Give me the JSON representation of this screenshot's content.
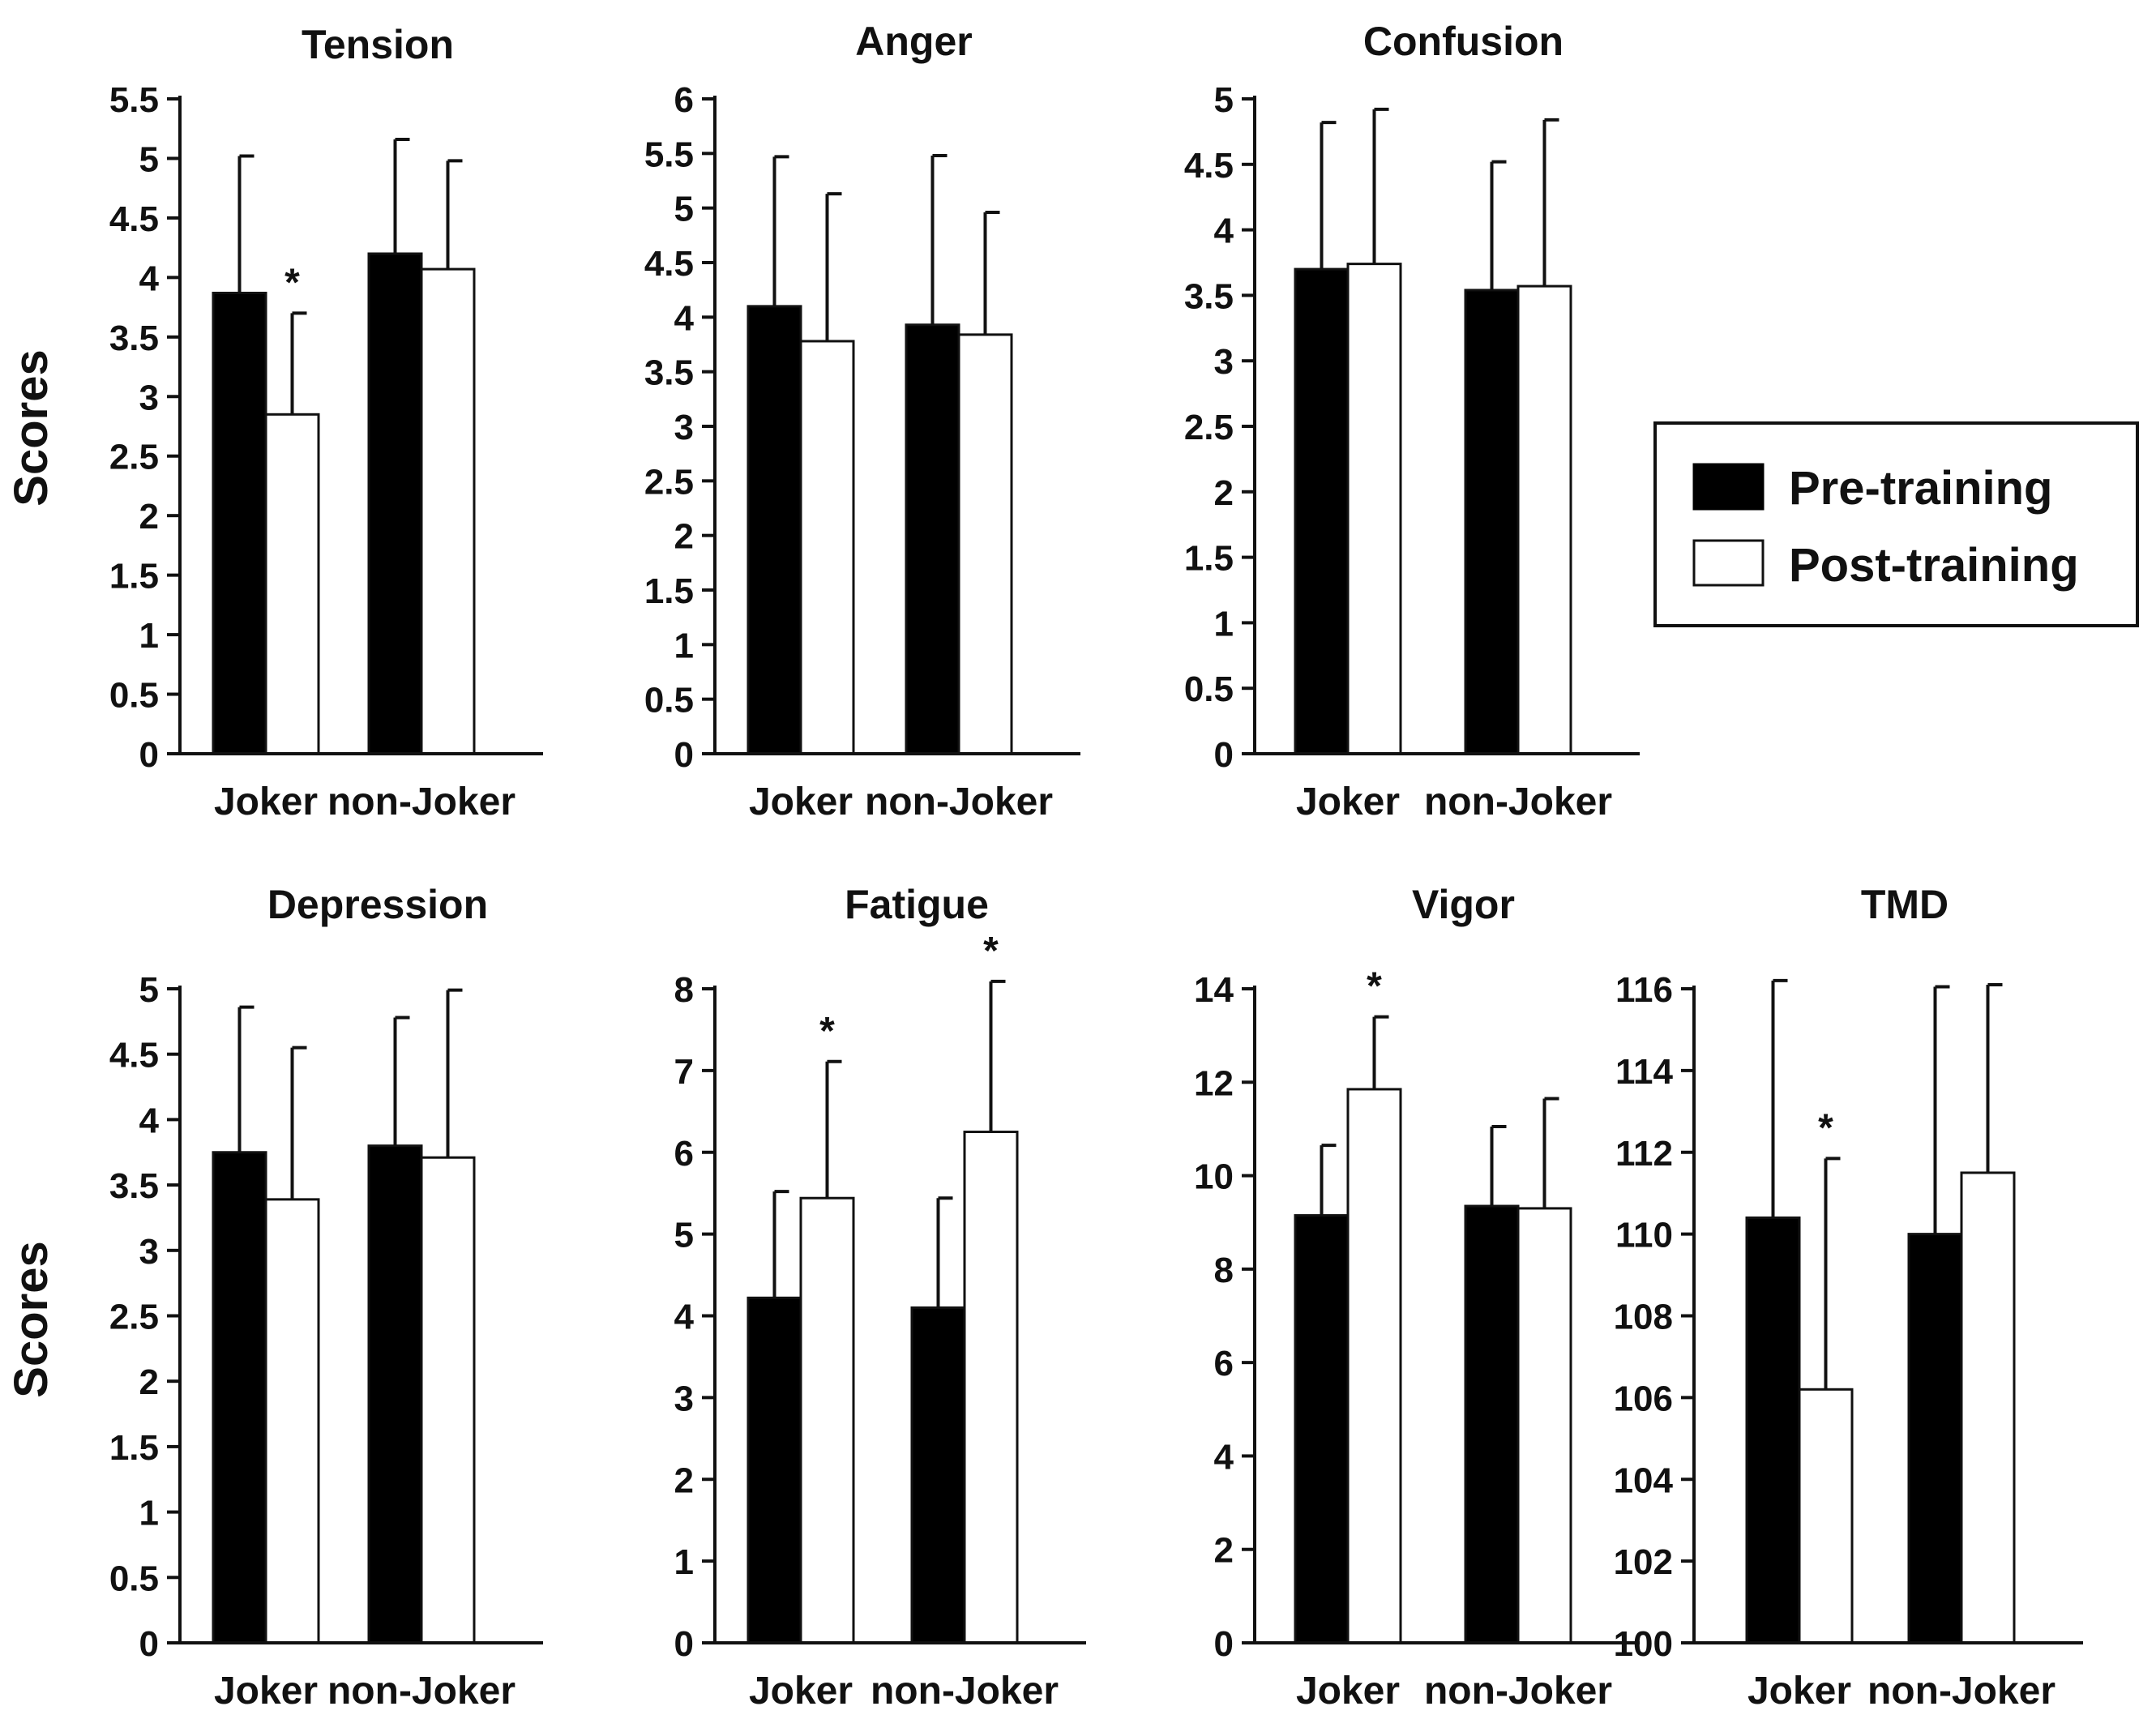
{
  "y_axis_label": "Scores",
  "legend": {
    "pre_label": "Pre-training",
    "post_label": "Post-training",
    "pre_color": "#000000",
    "post_color": "#ffffff"
  },
  "significance_marker": "*",
  "chart_data": [
    {
      "type": "bar",
      "title": "Tension",
      "categories": [
        "Joker",
        "non-Joker"
      ],
      "ylim": [
        0,
        5.5
      ],
      "yticks": [
        "0",
        "0.5",
        "1",
        "1.5",
        "2",
        "2.5",
        "3",
        "3.5",
        "4",
        "4.5",
        "5",
        "5.5"
      ],
      "ylabel": "Scores",
      "series": [
        {
          "name": "Pre-training",
          "values": [
            3.87,
            4.2
          ],
          "errors": [
            1.15,
            0.96
          ]
        },
        {
          "name": "Post-training",
          "values": [
            2.85,
            4.07
          ],
          "errors": [
            0.85,
            0.91
          ]
        }
      ],
      "significant": [
        {
          "category": "Joker",
          "series": "Post-training"
        }
      ]
    },
    {
      "type": "bar",
      "title": "Anger",
      "categories": [
        "Joker",
        "non-Joker"
      ],
      "ylim": [
        0,
        6
      ],
      "yticks": [
        "0",
        "0.5",
        "1",
        "1.5",
        "2",
        "2.5",
        "3",
        "3.5",
        "4",
        "4.5",
        "5",
        "5.5",
        "6"
      ],
      "ylabel": "",
      "series": [
        {
          "name": "Pre-training",
          "values": [
            4.1,
            3.93
          ],
          "errors": [
            1.37,
            1.55
          ]
        },
        {
          "name": "Post-training",
          "values": [
            3.78,
            3.84
          ],
          "errors": [
            1.35,
            1.12
          ]
        }
      ],
      "significant": []
    },
    {
      "type": "bar",
      "title": "Confusion",
      "categories": [
        "Joker",
        "non-Joker"
      ],
      "ylim": [
        0,
        5
      ],
      "yticks": [
        "0",
        "0.5",
        "1",
        "1.5",
        "2",
        "2.5",
        "3",
        "3.5",
        "4",
        "4.5",
        "5"
      ],
      "ylabel": "",
      "series": [
        {
          "name": "Pre-training",
          "values": [
            3.7,
            3.54
          ],
          "errors": [
            1.12,
            0.98
          ]
        },
        {
          "name": "Post-training",
          "values": [
            3.74,
            3.57
          ],
          "errors": [
            1.18,
            1.27
          ]
        }
      ],
      "significant": []
    },
    {
      "type": "bar",
      "title": "Depression",
      "categories": [
        "Joker",
        "non-Joker"
      ],
      "ylim": [
        0,
        5
      ],
      "yticks": [
        "0",
        "0.5",
        "1",
        "1.5",
        "2",
        "2.5",
        "3",
        "3.5",
        "4",
        "4.5",
        "5"
      ],
      "ylabel": "Scores",
      "series": [
        {
          "name": "Pre-training",
          "values": [
            3.75,
            3.8
          ],
          "errors": [
            1.11,
            0.98
          ]
        },
        {
          "name": "Post-training",
          "values": [
            3.39,
            3.71
          ],
          "errors": [
            1.16,
            1.28
          ]
        }
      ],
      "significant": []
    },
    {
      "type": "bar",
      "title": "Fatigue",
      "categories": [
        "Joker",
        "non-Joker"
      ],
      "ylim": [
        0,
        8
      ],
      "yticks": [
        "0",
        "1",
        "2",
        "3",
        "4",
        "5",
        "6",
        "7",
        "8"
      ],
      "ylabel": "",
      "series": [
        {
          "name": "Pre-training",
          "values": [
            4.22,
            4.1
          ],
          "errors": [
            1.3,
            1.34
          ]
        },
        {
          "name": "Post-training",
          "values": [
            5.44,
            6.25
          ],
          "errors": [
            1.67,
            1.84
          ]
        }
      ],
      "significant": [
        {
          "category": "Joker",
          "series": "Post-training"
        },
        {
          "category": "non-Joker",
          "series": "Post-training"
        }
      ]
    },
    {
      "type": "bar",
      "title": "Vigor",
      "categories": [
        "Joker",
        "non-Joker"
      ],
      "ylim": [
        0,
        14
      ],
      "yticks": [
        "0",
        "2",
        "4",
        "6",
        "8",
        "10",
        "12",
        "14"
      ],
      "ylabel": "",
      "series": [
        {
          "name": "Pre-training",
          "values": [
            9.15,
            9.35
          ],
          "errors": [
            1.5,
            1.7
          ]
        },
        {
          "name": "Post-training",
          "values": [
            11.85,
            9.3
          ],
          "errors": [
            1.55,
            2.35
          ]
        }
      ],
      "significant": [
        {
          "category": "Joker",
          "series": "Post-training"
        }
      ]
    },
    {
      "type": "bar",
      "title": "TMD",
      "categories": [
        "Joker",
        "non-Joker"
      ],
      "ylim": [
        100,
        116
      ],
      "yticks": [
        "100",
        "102",
        "104",
        "106",
        "108",
        "110",
        "112",
        "114",
        "116"
      ],
      "ylabel": "",
      "series": [
        {
          "name": "Pre-training",
          "values": [
            110.4,
            110.0
          ],
          "errors": [
            5.8,
            6.05
          ]
        },
        {
          "name": "Post-training",
          "values": [
            106.2,
            111.5
          ],
          "errors": [
            5.65,
            4.6
          ]
        }
      ],
      "significant": [
        {
          "category": "Joker",
          "series": "Post-training"
        }
      ]
    }
  ]
}
